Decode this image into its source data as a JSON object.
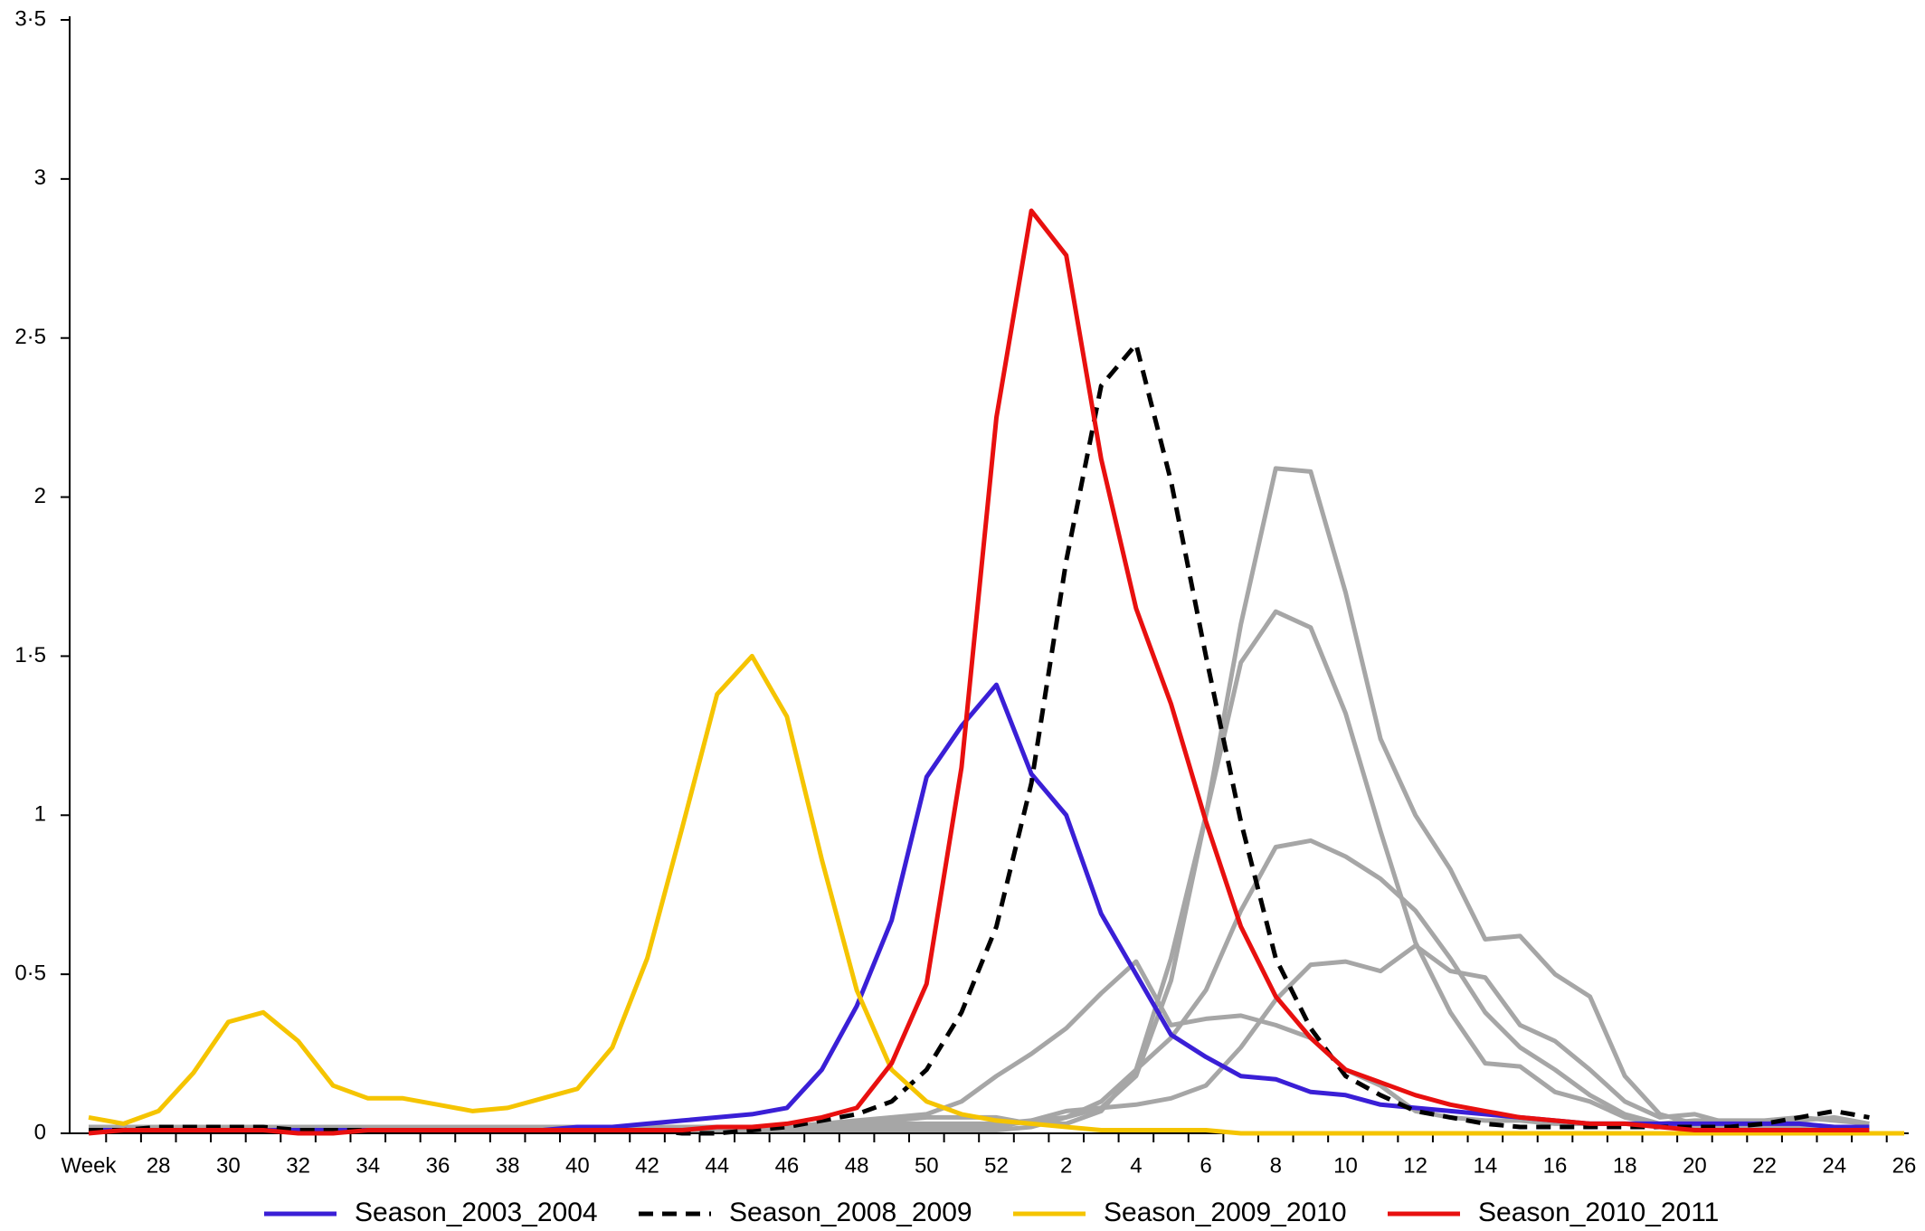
{
  "chart_data": {
    "type": "line",
    "categories": [
      "Week",
      null,
      "28",
      null,
      "30",
      null,
      "32",
      null,
      "34",
      null,
      "36",
      null,
      "38",
      null,
      "40",
      null,
      "42",
      null,
      "44",
      null,
      "46",
      null,
      "48",
      null,
      "50",
      null,
      "52",
      null,
      "2",
      null,
      "4",
      null,
      "6",
      null,
      "8",
      null,
      "10",
      null,
      "12",
      null,
      "14",
      null,
      "16",
      null,
      "18",
      null,
      "20",
      null,
      "22",
      null,
      "24",
      null,
      "26"
    ],
    "ylim": [
      0,
      3.5
    ],
    "yticks": [
      0,
      {
        "value": 0.5,
        "label": "0·5"
      },
      1,
      {
        "value": 1.5,
        "label": "1·5"
      },
      2,
      {
        "value": 2.5,
        "label": "2·5"
      },
      3,
      {
        "value": 3.5,
        "label": "3·5"
      }
    ],
    "grid": false,
    "legend": "bottom",
    "series": [
      {
        "color": "#a6a6a6",
        "values": [
          0.01,
          0.01,
          0.01,
          0.01,
          0.01,
          0.01,
          0.01,
          0.01,
          0.01,
          0.01,
          0.01,
          0.01,
          0.01,
          0.01,
          0.01,
          0.01,
          0.01,
          0.01,
          0.01,
          0.01,
          0.02,
          0.02,
          0.03,
          0.03,
          0.03,
          0.03,
          0.03,
          0.04,
          0.05,
          0.08,
          0.18,
          0.48,
          1.0,
          1.6,
          2.09,
          2.08,
          1.7,
          1.24,
          1.0,
          0.83,
          0.61,
          0.62,
          0.5,
          0.43,
          0.18,
          0.06,
          0.03,
          0.02,
          0.02,
          0.02,
          0.02,
          0.01,
          null
        ]
      },
      {
        "color": "#a6a6a6",
        "values": [
          0.02,
          0.02,
          0.02,
          0.02,
          0.02,
          0.02,
          0.02,
          0.02,
          0.02,
          0.02,
          0.02,
          0.02,
          0.02,
          0.02,
          0.02,
          0.02,
          0.02,
          0.02,
          0.02,
          0.02,
          0.02,
          0.03,
          0.03,
          0.04,
          0.05,
          0.05,
          0.05,
          0.03,
          0.03,
          0.07,
          0.2,
          0.55,
          1.0,
          1.48,
          1.64,
          1.59,
          1.32,
          0.95,
          0.6,
          0.38,
          0.22,
          0.21,
          0.13,
          0.1,
          0.05,
          0.03,
          0.02,
          0.02,
          0.02,
          0.02,
          0.02,
          0.02,
          null
        ]
      },
      {
        "color": "#a6a6a6",
        "values": [
          0.01,
          0.01,
          0.01,
          0.01,
          0.01,
          0.01,
          0.01,
          0.01,
          0.01,
          0.01,
          0.01,
          0.01,
          0.01,
          0.01,
          0.01,
          0.01,
          0.01,
          0.01,
          0.01,
          0.01,
          0.01,
          0.01,
          0.01,
          0.01,
          0.01,
          0.01,
          0.01,
          0.02,
          0.05,
          0.1,
          0.2,
          0.3,
          0.45,
          0.7,
          0.9,
          0.92,
          0.87,
          0.8,
          0.7,
          0.55,
          0.38,
          0.27,
          0.2,
          0.12,
          0.06,
          0.03,
          0.02,
          0.02,
          0.02,
          0.02,
          0.02,
          0.02,
          null
        ]
      },
      {
        "color": "#a6a6a6",
        "values": [
          0.01,
          0.01,
          0.01,
          0.01,
          0.01,
          0.01,
          0.01,
          0.01,
          0.01,
          0.01,
          0.01,
          0.01,
          0.01,
          0.01,
          0.01,
          0.01,
          0.01,
          0.01,
          0.01,
          0.01,
          0.02,
          0.03,
          0.04,
          0.05,
          0.06,
          0.1,
          0.18,
          0.25,
          0.33,
          0.44,
          0.54,
          0.34,
          0.36,
          0.37,
          0.34,
          0.3,
          0.2,
          0.15,
          0.07,
          0.05,
          0.04,
          0.04,
          0.03,
          0.03,
          0.03,
          0.03,
          0.04,
          0.04,
          0.04,
          0.05,
          0.04,
          0.03,
          null
        ]
      },
      {
        "color": "#a6a6a6",
        "values": [
          0.02,
          0.02,
          0.02,
          0.02,
          0.02,
          0.02,
          0.02,
          0.02,
          0.02,
          0.02,
          0.02,
          0.02,
          0.02,
          0.02,
          0.02,
          0.02,
          0.02,
          0.02,
          0.02,
          0.02,
          0.02,
          0.02,
          0.02,
          0.02,
          0.02,
          0.02,
          0.02,
          0.04,
          0.07,
          0.08,
          0.09,
          0.11,
          0.15,
          0.27,
          0.42,
          0.53,
          0.54,
          0.51,
          0.59,
          0.51,
          0.49,
          0.34,
          0.29,
          0.2,
          0.1,
          0.05,
          0.06,
          0.03,
          0.03,
          0.04,
          0.05,
          0.03,
          null
        ]
      },
      {
        "name": "Season_2003_2004",
        "color": "#3a1fd6",
        "linestyle": "solid",
        "values": [
          0.01,
          0.01,
          0.01,
          0.01,
          0.01,
          0.01,
          0.01,
          0.01,
          0.01,
          0.01,
          0.01,
          0.01,
          0.01,
          0.01,
          0.02,
          0.02,
          0.03,
          0.04,
          0.05,
          0.06,
          0.08,
          0.2,
          0.4,
          0.67,
          1.12,
          1.28,
          1.41,
          1.13,
          1.0,
          0.69,
          0.5,
          0.31,
          0.24,
          0.18,
          0.17,
          0.13,
          0.12,
          0.09,
          0.08,
          0.07,
          0.06,
          0.05,
          0.04,
          0.03,
          0.03,
          0.03,
          0.03,
          0.03,
          0.03,
          0.03,
          0.02,
          0.02,
          null
        ]
      },
      {
        "name": "Season_2008_2009",
        "color": "#000000",
        "linestyle": "dashed",
        "values": [
          0.01,
          0.01,
          0.02,
          0.02,
          0.02,
          0.02,
          0.01,
          0.01,
          0.01,
          0.01,
          0.01,
          0.01,
          0.01,
          0.01,
          0.01,
          0.01,
          0.01,
          0,
          0,
          0.01,
          0.02,
          0.04,
          0.06,
          0.1,
          0.2,
          0.38,
          0.65,
          1.1,
          1.8,
          2.35,
          2.48,
          2.05,
          1.5,
          0.98,
          0.55,
          0.33,
          0.18,
          0.12,
          0.07,
          0.05,
          0.03,
          0.02,
          0.02,
          0.02,
          0.02,
          0.02,
          0.02,
          0.02,
          0.03,
          0.05,
          0.07,
          0.05,
          null
        ]
      },
      {
        "name": "Season_2009_2010",
        "color": "#f5c400",
        "linestyle": "solid",
        "values": [
          0.05,
          0.03,
          0.07,
          0.19,
          0.35,
          0.38,
          0.29,
          0.15,
          0.11,
          0.11,
          0.09,
          0.07,
          0.08,
          0.11,
          0.14,
          0.27,
          0.55,
          0.96,
          1.38,
          1.5,
          1.31,
          0.86,
          0.45,
          0.2,
          0.1,
          0.06,
          0.04,
          0.03,
          0.02,
          0.01,
          0.01,
          0.01,
          0.01,
          0,
          0,
          0,
          0,
          0,
          0,
          0,
          0,
          0,
          0,
          0,
          0,
          0,
          0,
          0,
          0,
          0,
          0,
          0,
          0
        ]
      },
      {
        "name": "Season_2010_2011",
        "color": "#e8100f",
        "linestyle": "solid",
        "values": [
          0,
          0.01,
          0.01,
          0.01,
          0.01,
          0.01,
          0,
          0,
          0.01,
          0.01,
          0.01,
          0.01,
          0.01,
          0.01,
          0.01,
          0.01,
          0.01,
          0.01,
          0.02,
          0.02,
          0.03,
          0.05,
          0.08,
          0.22,
          0.47,
          1.15,
          2.25,
          2.9,
          2.76,
          2.12,
          1.65,
          1.35,
          0.98,
          0.65,
          0.43,
          0.3,
          0.2,
          0.16,
          0.12,
          0.09,
          0.07,
          0.05,
          0.04,
          0.03,
          0.03,
          0.02,
          0.01,
          0.01,
          0.01,
          0.01,
          0.01,
          0.01,
          null
        ]
      }
    ]
  }
}
